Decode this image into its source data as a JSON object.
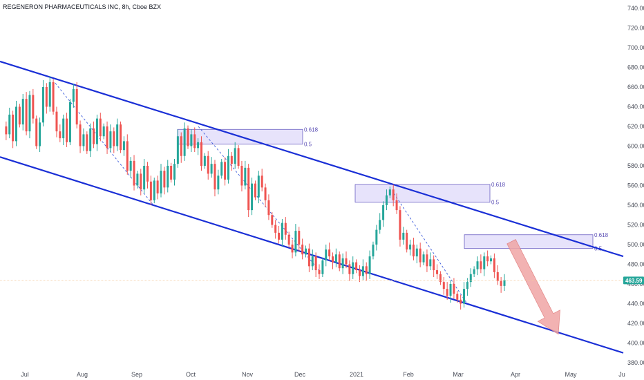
{
  "header": {
    "title": "REGENERON PHARMACEUTICALS INC, 8h, Cboe BZX"
  },
  "colors": {
    "up": "#26a69a",
    "down": "#ef5350",
    "channel": "#1a2fd6",
    "zone_fill": "#e7e3fb",
    "zone_stroke": "#6a5fc2",
    "arrow": "#f0a5a5",
    "price_line": "#f6c99c",
    "price_tag": "#26a69a"
  },
  "chart_data": {
    "type": "candlestick",
    "title": "REGENERON PHARMACEUTICALS INC, 8h, Cboe BZX",
    "y_axis": {
      "position": "right",
      "ylim": [
        380,
        740
      ],
      "ticks": [
        740,
        720,
        700,
        680,
        660,
        640,
        620,
        600,
        580,
        560,
        540,
        520,
        500,
        480,
        460,
        440,
        420,
        400,
        380
      ]
    },
    "x_axis": {
      "labels": [
        "Jul",
        "Aug",
        "Sep",
        "Oct",
        "Nov",
        "Dec",
        "2021",
        "Feb",
        "Mar",
        "Apr",
        "May",
        "Ju"
      ]
    },
    "current_price": {
      "label": "463.59",
      "value": 463.59
    },
    "fib_zones": [
      {
        "upper_label": "0.618",
        "lower_label": "0.5",
        "upper": 617,
        "lower": 602
      },
      {
        "upper_label": "0.618",
        "lower_label": "0.5",
        "upper": 561,
        "lower": 543
      },
      {
        "upper_label": "0.618",
        "lower_label": "0.5",
        "upper": 510,
        "lower": 496
      }
    ],
    "channel": {
      "upper": {
        "start": 686,
        "end": 488
      },
      "lower": {
        "start": 589,
        "end": 390
      }
    },
    "price_path": [
      620,
      612,
      632,
      605,
      640,
      622,
      648,
      615,
      652,
      628,
      600,
      624,
      660,
      640,
      665,
      635,
      615,
      608,
      628,
      604,
      645,
      658,
      622,
      600,
      612,
      595,
      618,
      602,
      628,
      610,
      620,
      598,
      615,
      600,
      622,
      596,
      605,
      575,
      585,
      560,
      572,
      556,
      580,
      564,
      545,
      565,
      552,
      575,
      558,
      580,
      566,
      582,
      610,
      590,
      618,
      600,
      612,
      598,
      604,
      580,
      590,
      572,
      582,
      556,
      570,
      584,
      566,
      590,
      582,
      598,
      580,
      560,
      578,
      535,
      562,
      548,
      570,
      558,
      545,
      530,
      520,
      512,
      505,
      522,
      510,
      500,
      492,
      514,
      500,
      490,
      496,
      478,
      488,
      474,
      470,
      484,
      495,
      488,
      482,
      490,
      476,
      486,
      480,
      470,
      482,
      474,
      468,
      478,
      470,
      488,
      500,
      515,
      525,
      540,
      550,
      556,
      545,
      535,
      505,
      512,
      495,
      500,
      488,
      496,
      482,
      490,
      478,
      485,
      474,
      470,
      462,
      455,
      448,
      460,
      450,
      444,
      440,
      455,
      462,
      470,
      475,
      483,
      475,
      488,
      483,
      486,
      472,
      463,
      458,
      464
    ]
  }
}
